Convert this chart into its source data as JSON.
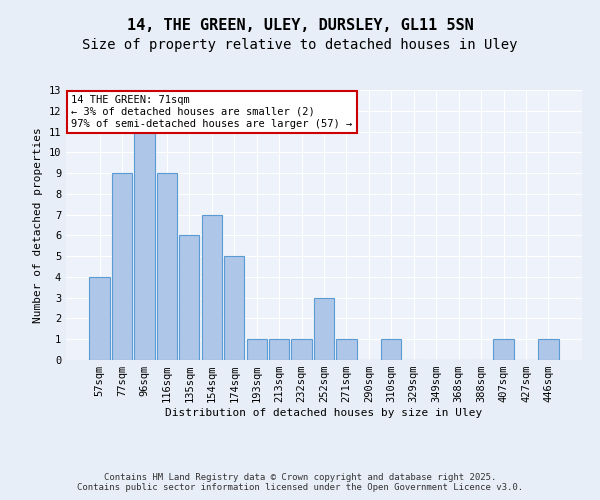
{
  "title1": "14, THE GREEN, ULEY, DURSLEY, GL11 5SN",
  "title2": "Size of property relative to detached houses in Uley",
  "xlabel": "Distribution of detached houses by size in Uley",
  "ylabel": "Number of detached properties",
  "categories": [
    "57sqm",
    "77sqm",
    "96sqm",
    "116sqm",
    "135sqm",
    "154sqm",
    "174sqm",
    "193sqm",
    "213sqm",
    "232sqm",
    "252sqm",
    "271sqm",
    "290sqm",
    "310sqm",
    "329sqm",
    "349sqm",
    "368sqm",
    "388sqm",
    "407sqm",
    "427sqm",
    "446sqm"
  ],
  "values": [
    4,
    9,
    11,
    9,
    6,
    7,
    5,
    1,
    1,
    1,
    3,
    1,
    0,
    1,
    0,
    0,
    0,
    0,
    1,
    0,
    1
  ],
  "bar_color": "#aec6e8",
  "bar_edge_color": "#5b9bd5",
  "annotation_box_text": "14 THE GREEN: 71sqm\n← 3% of detached houses are smaller (2)\n97% of semi-detached houses are larger (57) →",
  "annotation_box_color": "#ffffff",
  "annotation_box_edge_color": "#cc0000",
  "ylim": [
    0,
    13
  ],
  "yticks": [
    0,
    1,
    2,
    3,
    4,
    5,
    6,
    7,
    8,
    9,
    10,
    11,
    12,
    13
  ],
  "footer_line1": "Contains HM Land Registry data © Crown copyright and database right 2025.",
  "footer_line2": "Contains public sector information licensed under the Open Government Licence v3.0.",
  "bg_color": "#e8eef7",
  "plot_bg_color": "#eef2fa",
  "grid_color": "#ffffff",
  "title_fontsize": 11,
  "subtitle_fontsize": 10,
  "axis_label_fontsize": 8,
  "tick_fontsize": 7.5,
  "footer_fontsize": 6.5
}
